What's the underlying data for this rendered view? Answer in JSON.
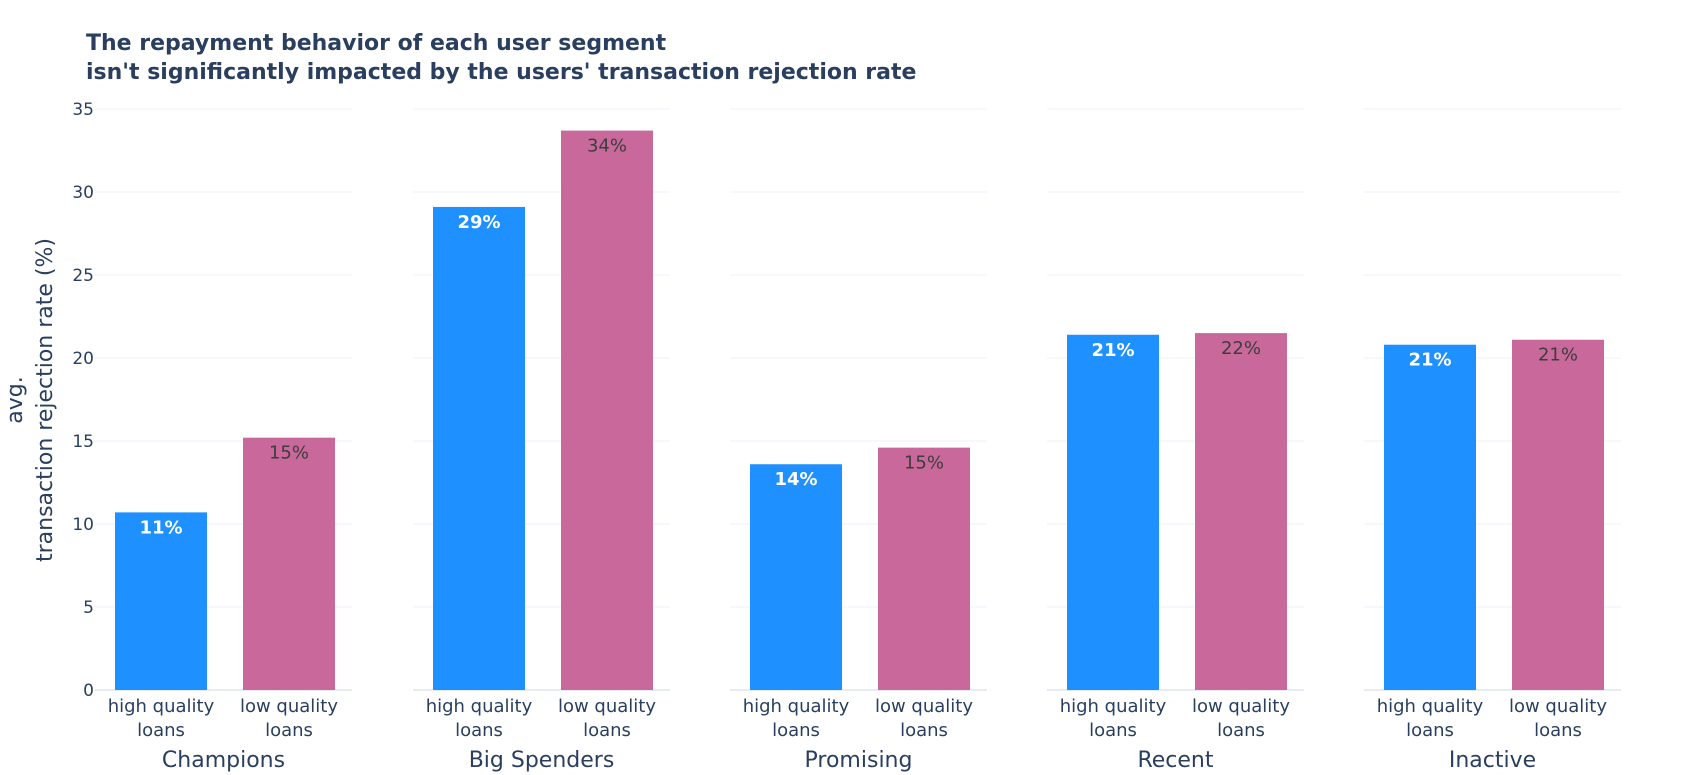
{
  "chart_data": {
    "type": "bar",
    "title_lines": [
      "The repayment behavior of each user segment",
      "isn't significantly impacted by the users' transaction rejection rate"
    ],
    "ylabel_lines": [
      "avg.",
      "transaction rejection rate (%)"
    ],
    "ylim": [
      0,
      35
    ],
    "yticks": [
      0,
      5,
      10,
      15,
      20,
      25,
      30,
      35
    ],
    "grid": true,
    "categories_lines": [
      [
        "high quality",
        "loans"
      ],
      [
        "low quality",
        "loans"
      ]
    ],
    "colors": {
      "high": "#1e90ff",
      "low": "#c9699b",
      "label_high": "#ffffff",
      "label_low": "#3d3d3d"
    },
    "panels": [
      {
        "name": "Champions",
        "values": [
          10.7,
          15.2
        ],
        "labels": [
          "11%",
          "15%"
        ]
      },
      {
        "name": "Big Spenders",
        "values": [
          29.1,
          33.7
        ],
        "labels": [
          "29%",
          "34%"
        ]
      },
      {
        "name": "Promising",
        "values": [
          13.6,
          14.6
        ],
        "labels": [
          "14%",
          "15%"
        ]
      },
      {
        "name": "Recent",
        "values": [
          21.4,
          21.5
        ],
        "labels": [
          "21%",
          "22%"
        ]
      },
      {
        "name": "Inactive",
        "values": [
          20.8,
          21.1
        ],
        "labels": [
          "21%",
          "21%"
        ]
      }
    ]
  }
}
